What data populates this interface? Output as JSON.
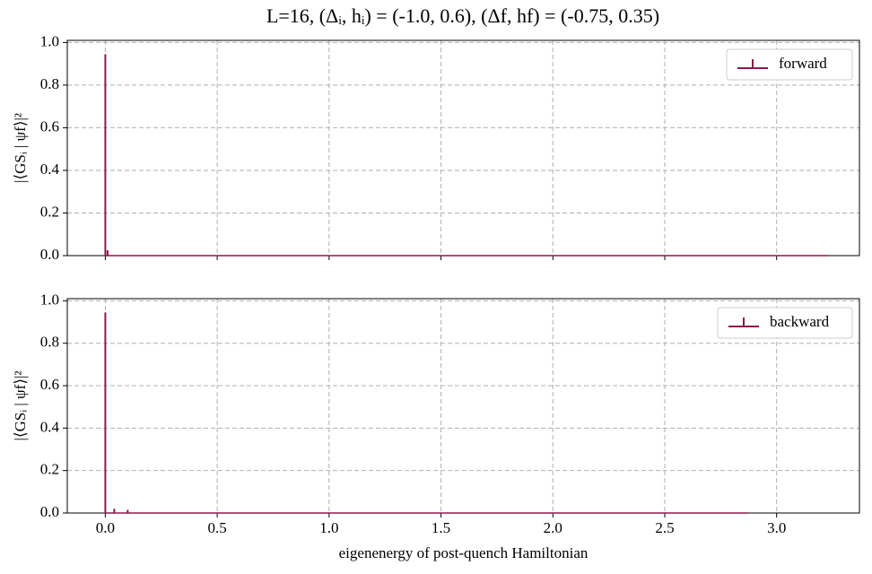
{
  "title": "L=16,    (Δᵢ, hᵢ) = (-1.0, 0.6),   (Δf, hf) = (-0.75, 0.35)",
  "chart_data": [
    {
      "type": "stem",
      "ylabel": "|⟨GSᵢ | ψf⟩|²",
      "legend": "upper right",
      "grid": true,
      "series": [
        {
          "name": "forward",
          "color": "#8c1a4b",
          "x": [
            0.0,
            0.01,
            3.23
          ],
          "values": [
            0.945,
            0.025,
            0.0
          ]
        }
      ],
      "xlim": [
        -0.17,
        3.37
      ],
      "ylim": [
        0,
        1.01
      ],
      "xticks": [
        0,
        0.5,
        1,
        1.5,
        2,
        2.5,
        3
      ],
      "yticks": [
        {
          "value": 0,
          "label": "0.0"
        },
        {
          "value": 0.2,
          "label": "0.2"
        },
        {
          "value": 0.4,
          "label": "0.4"
        },
        {
          "value": 0.6,
          "label": "0.6"
        },
        {
          "value": 0.8,
          "label": "0.8"
        },
        {
          "value": 1,
          "label": "1.0"
        }
      ]
    },
    {
      "type": "stem",
      "ylabel": "|⟨GSᵢ | ψf⟩|²",
      "xlabel": "eigenenergy of post-quench Hamiltonian",
      "legend": "upper right",
      "grid": true,
      "series": [
        {
          "name": "backward",
          "color": "#8c1a4b",
          "x": [
            0.0,
            0.04,
            0.1,
            2.87
          ],
          "values": [
            0.945,
            0.02,
            0.015,
            0.0
          ]
        }
      ],
      "xlim": [
        -0.17,
        3.37
      ],
      "ylim": [
        0,
        1.01
      ],
      "xticks": [
        {
          "value": 0,
          "label": "0.0"
        },
        {
          "value": 0.5,
          "label": "0.5"
        },
        {
          "value": 1,
          "label": "1.0"
        },
        {
          "value": 1.5,
          "label": "1.5"
        },
        {
          "value": 2,
          "label": "2.0"
        },
        {
          "value": 2.5,
          "label": "2.5"
        },
        {
          "value": 3,
          "label": "3.0"
        }
      ],
      "yticks": [
        {
          "value": 0,
          "label": "0.0"
        },
        {
          "value": 0.2,
          "label": "0.2"
        },
        {
          "value": 0.4,
          "label": "0.4"
        },
        {
          "value": 0.6,
          "label": "0.6"
        },
        {
          "value": 0.8,
          "label": "0.8"
        },
        {
          "value": 1,
          "label": "1.0"
        }
      ]
    }
  ]
}
